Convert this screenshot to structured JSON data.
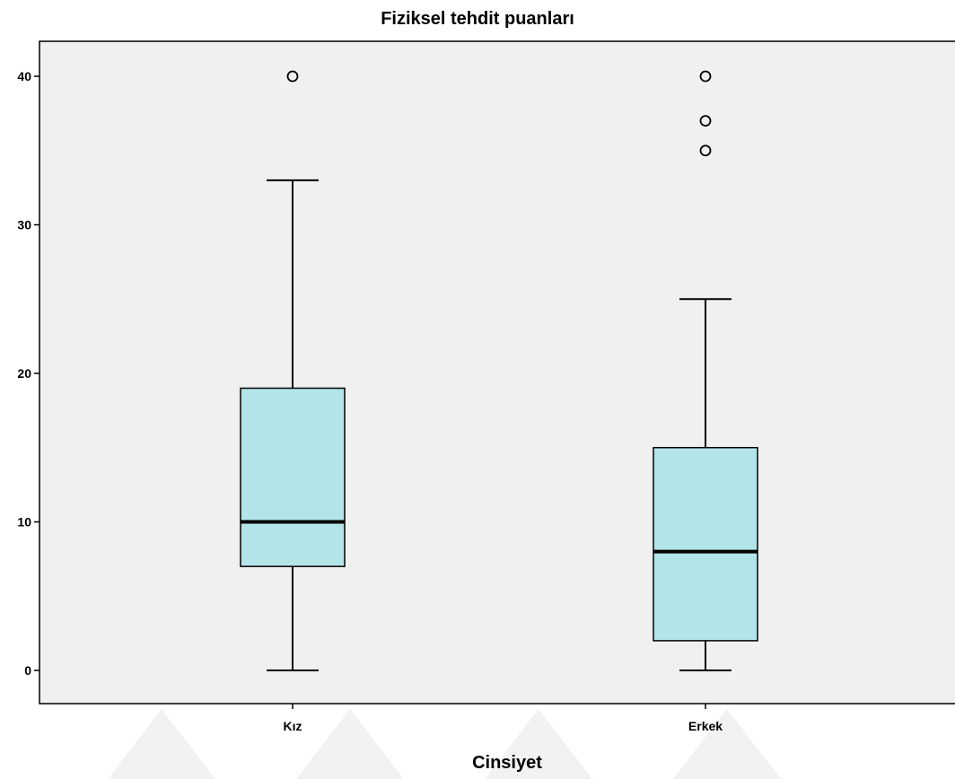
{
  "chart_data": {
    "type": "boxplot",
    "title": "Fiziksel tehdit puanları",
    "xlabel": "Cinsiyet",
    "ylabel": "",
    "categories": [
      "Kız",
      "Erkek"
    ],
    "ylim": [
      -2.5,
      42.5
    ],
    "yticks": [
      0,
      10,
      20,
      30,
      40
    ],
    "grid": false,
    "box_color": "#b3e5e8",
    "plot_background": "#f0f0f0",
    "boxes": [
      {
        "category": "Kız",
        "min": 0,
        "q1": 7,
        "median": 10,
        "q3": 19,
        "max": 33,
        "outliers": [
          40
        ]
      },
      {
        "category": "Erkek",
        "min": 0,
        "q1": 2,
        "median": 8,
        "q3": 15,
        "max": 25,
        "outliers": [
          35,
          37,
          40
        ]
      }
    ]
  }
}
